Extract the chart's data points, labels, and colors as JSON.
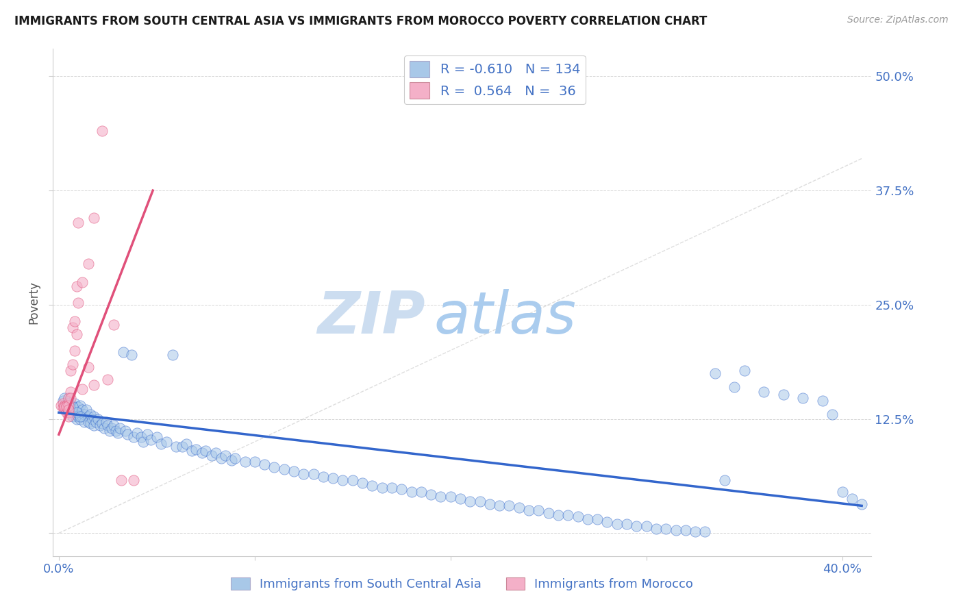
{
  "title": "IMMIGRANTS FROM SOUTH CENTRAL ASIA VS IMMIGRANTS FROM MOROCCO POVERTY CORRELATION CHART",
  "source": "Source: ZipAtlas.com",
  "ylabel": "Poverty",
  "y_ticks": [
    0.0,
    0.125,
    0.25,
    0.375,
    0.5
  ],
  "y_tick_labels": [
    "",
    "12.5%",
    "25.0%",
    "37.5%",
    "50.0%"
  ],
  "xlim": [
    -0.003,
    0.415
  ],
  "ylim": [
    -0.025,
    0.53
  ],
  "legend_R1": "-0.610",
  "legend_N1": "134",
  "legend_R2": "0.564",
  "legend_N2": "36",
  "series1_color": "#a8c8e8",
  "series2_color": "#f4b0c8",
  "line1_color": "#3366cc",
  "line2_color": "#e0507a",
  "watermark_zip": "ZIP",
  "watermark_atlas": "atlas",
  "watermark_color_zip": "#ccddf0",
  "watermark_color_atlas": "#aaccee",
  "title_color": "#1a1a1a",
  "label_color": "#4472c4",
  "legend_label1": "Immigrants from South Central Asia",
  "legend_label2": "Immigrants from Morocco",
  "blue_line_x": [
    0.0,
    0.41
  ],
  "blue_line_y": [
    0.132,
    0.03
  ],
  "pink_line_x": [
    0.0,
    0.048
  ],
  "pink_line_y": [
    0.108,
    0.375
  ],
  "diag_line_x": [
    0.0,
    0.41
  ],
  "diag_line_y": [
    0.0,
    0.41
  ],
  "blue_x": [
    0.002,
    0.003,
    0.004,
    0.005,
    0.005,
    0.006,
    0.007,
    0.007,
    0.008,
    0.008,
    0.009,
    0.009,
    0.01,
    0.01,
    0.01,
    0.011,
    0.011,
    0.012,
    0.012,
    0.013,
    0.013,
    0.014,
    0.015,
    0.015,
    0.016,
    0.016,
    0.017,
    0.018,
    0.018,
    0.019,
    0.02,
    0.021,
    0.022,
    0.023,
    0.024,
    0.025,
    0.026,
    0.027,
    0.028,
    0.029,
    0.03,
    0.031,
    0.033,
    0.034,
    0.035,
    0.037,
    0.038,
    0.04,
    0.042,
    0.043,
    0.045,
    0.047,
    0.05,
    0.052,
    0.055,
    0.058,
    0.06,
    0.063,
    0.065,
    0.068,
    0.07,
    0.073,
    0.075,
    0.078,
    0.08,
    0.083,
    0.085,
    0.088,
    0.09,
    0.095,
    0.1,
    0.105,
    0.11,
    0.115,
    0.12,
    0.125,
    0.13,
    0.135,
    0.14,
    0.145,
    0.15,
    0.155,
    0.16,
    0.165,
    0.17,
    0.175,
    0.18,
    0.185,
    0.19,
    0.195,
    0.2,
    0.205,
    0.21,
    0.215,
    0.22,
    0.225,
    0.23,
    0.235,
    0.24,
    0.245,
    0.25,
    0.255,
    0.26,
    0.265,
    0.27,
    0.275,
    0.28,
    0.285,
    0.29,
    0.295,
    0.3,
    0.305,
    0.31,
    0.315,
    0.32,
    0.325,
    0.33,
    0.335,
    0.34,
    0.345,
    0.35,
    0.36,
    0.37,
    0.38,
    0.39,
    0.395,
    0.4,
    0.405,
    0.41,
    0.003,
    0.005,
    0.007,
    0.009,
    0.011
  ],
  "blue_y": [
    0.145,
    0.14,
    0.138,
    0.135,
    0.148,
    0.132,
    0.14,
    0.128,
    0.135,
    0.142,
    0.13,
    0.125,
    0.138,
    0.132,
    0.128,
    0.14,
    0.125,
    0.135,
    0.128,
    0.13,
    0.122,
    0.135,
    0.128,
    0.122,
    0.13,
    0.12,
    0.125,
    0.128,
    0.118,
    0.122,
    0.125,
    0.118,
    0.12,
    0.115,
    0.122,
    0.118,
    0.112,
    0.115,
    0.118,
    0.112,
    0.11,
    0.115,
    0.198,
    0.112,
    0.108,
    0.195,
    0.105,
    0.11,
    0.105,
    0.1,
    0.108,
    0.102,
    0.105,
    0.098,
    0.1,
    0.195,
    0.095,
    0.095,
    0.098,
    0.09,
    0.092,
    0.088,
    0.09,
    0.085,
    0.088,
    0.082,
    0.085,
    0.08,
    0.082,
    0.078,
    0.078,
    0.075,
    0.072,
    0.07,
    0.068,
    0.065,
    0.065,
    0.062,
    0.06,
    0.058,
    0.058,
    0.055,
    0.052,
    0.05,
    0.05,
    0.048,
    0.045,
    0.045,
    0.042,
    0.04,
    0.04,
    0.038,
    0.035,
    0.035,
    0.032,
    0.03,
    0.03,
    0.028,
    0.025,
    0.025,
    0.022,
    0.02,
    0.02,
    0.018,
    0.015,
    0.015,
    0.012,
    0.01,
    0.01,
    0.008,
    0.008,
    0.005,
    0.005,
    0.003,
    0.003,
    0.002,
    0.002,
    0.175,
    0.058,
    0.16,
    0.178,
    0.155,
    0.152,
    0.148,
    0.145,
    0.13,
    0.045,
    0.038,
    0.032,
    0.148,
    0.142,
    0.138,
    0.132,
    0.128
  ],
  "pink_x": [
    0.001,
    0.002,
    0.002,
    0.003,
    0.003,
    0.003,
    0.004,
    0.004,
    0.004,
    0.005,
    0.005,
    0.005,
    0.005,
    0.005,
    0.006,
    0.006,
    0.006,
    0.007,
    0.007,
    0.008,
    0.008,
    0.009,
    0.009,
    0.01,
    0.01,
    0.012,
    0.012,
    0.015,
    0.015,
    0.018,
    0.018,
    0.022,
    0.025,
    0.028,
    0.032,
    0.038
  ],
  "pink_y": [
    0.14,
    0.138,
    0.142,
    0.135,
    0.14,
    0.138,
    0.132,
    0.14,
    0.138,
    0.132,
    0.148,
    0.14,
    0.135,
    0.128,
    0.155,
    0.148,
    0.178,
    0.185,
    0.225,
    0.2,
    0.232,
    0.27,
    0.218,
    0.252,
    0.34,
    0.275,
    0.158,
    0.295,
    0.182,
    0.345,
    0.162,
    0.44,
    0.168,
    0.228,
    0.058,
    0.058
  ]
}
